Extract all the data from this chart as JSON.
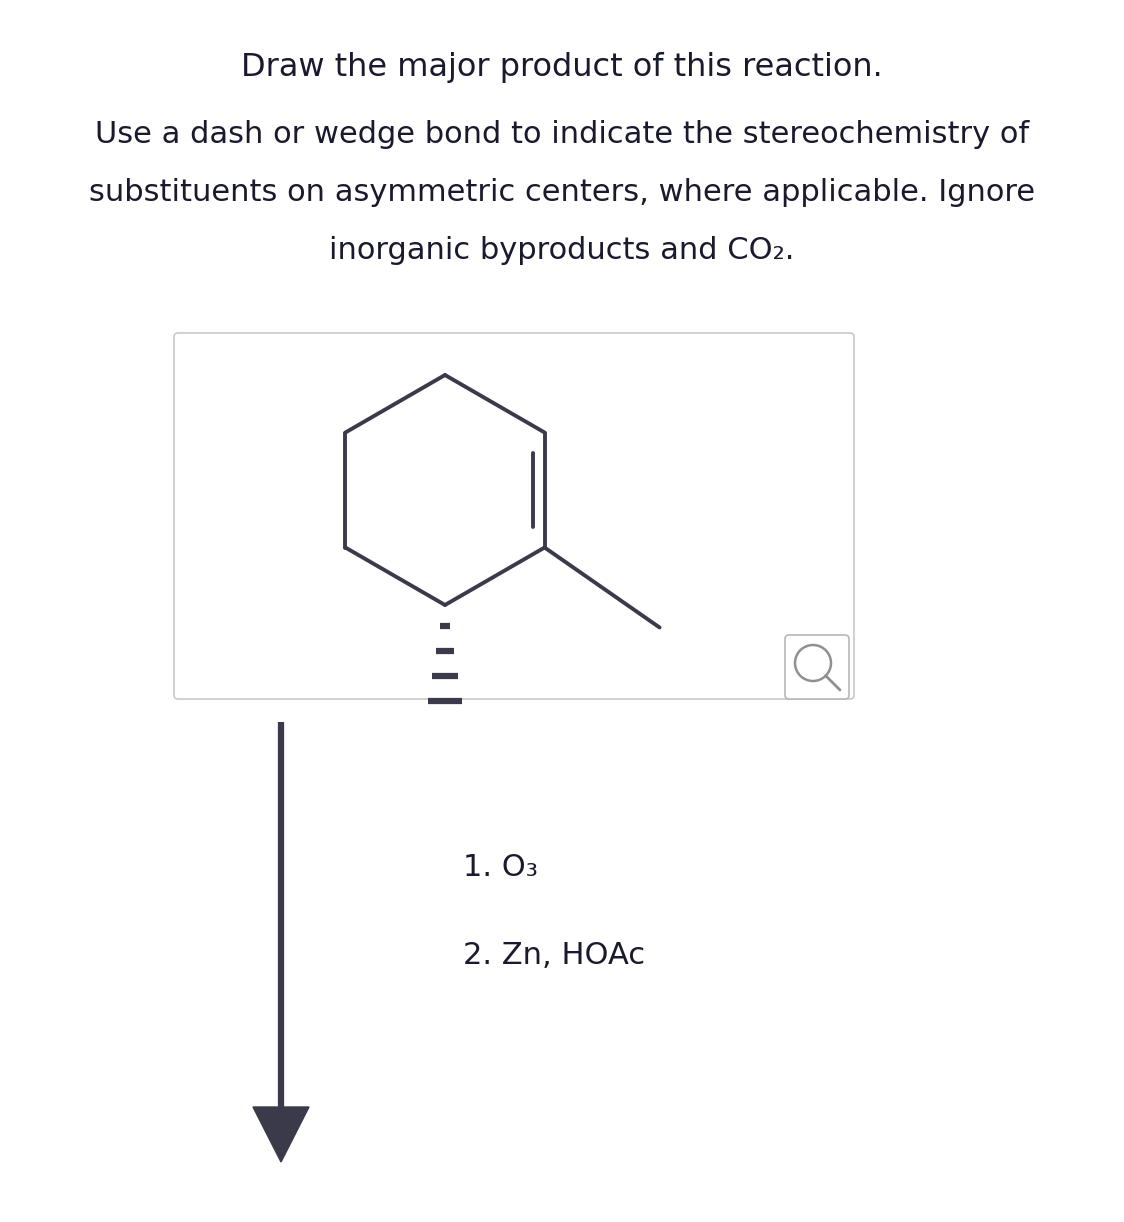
{
  "title": "Draw the major product of this reaction.",
  "subtitle_lines": [
    "Use a dash or wedge bond to indicate the stereochemistry of",
    "substituents on asymmetric centers, where applicable. Ignore",
    "inorganic byproducts and CO₂."
  ],
  "reaction_steps": [
    "1. O₃",
    "2. Zn, HOAc"
  ],
  "background_color": "#ffffff",
  "text_color": "#1a1a2e",
  "bond_color": "#3a3a4a",
  "box_border_color": "#c8c8c8",
  "title_fontsize": 23,
  "subtitle_fontsize": 22,
  "steps_fontsize": 22,
  "arrow_color": "#3a3a4a",
  "mag_color": "#b0b0b0"
}
